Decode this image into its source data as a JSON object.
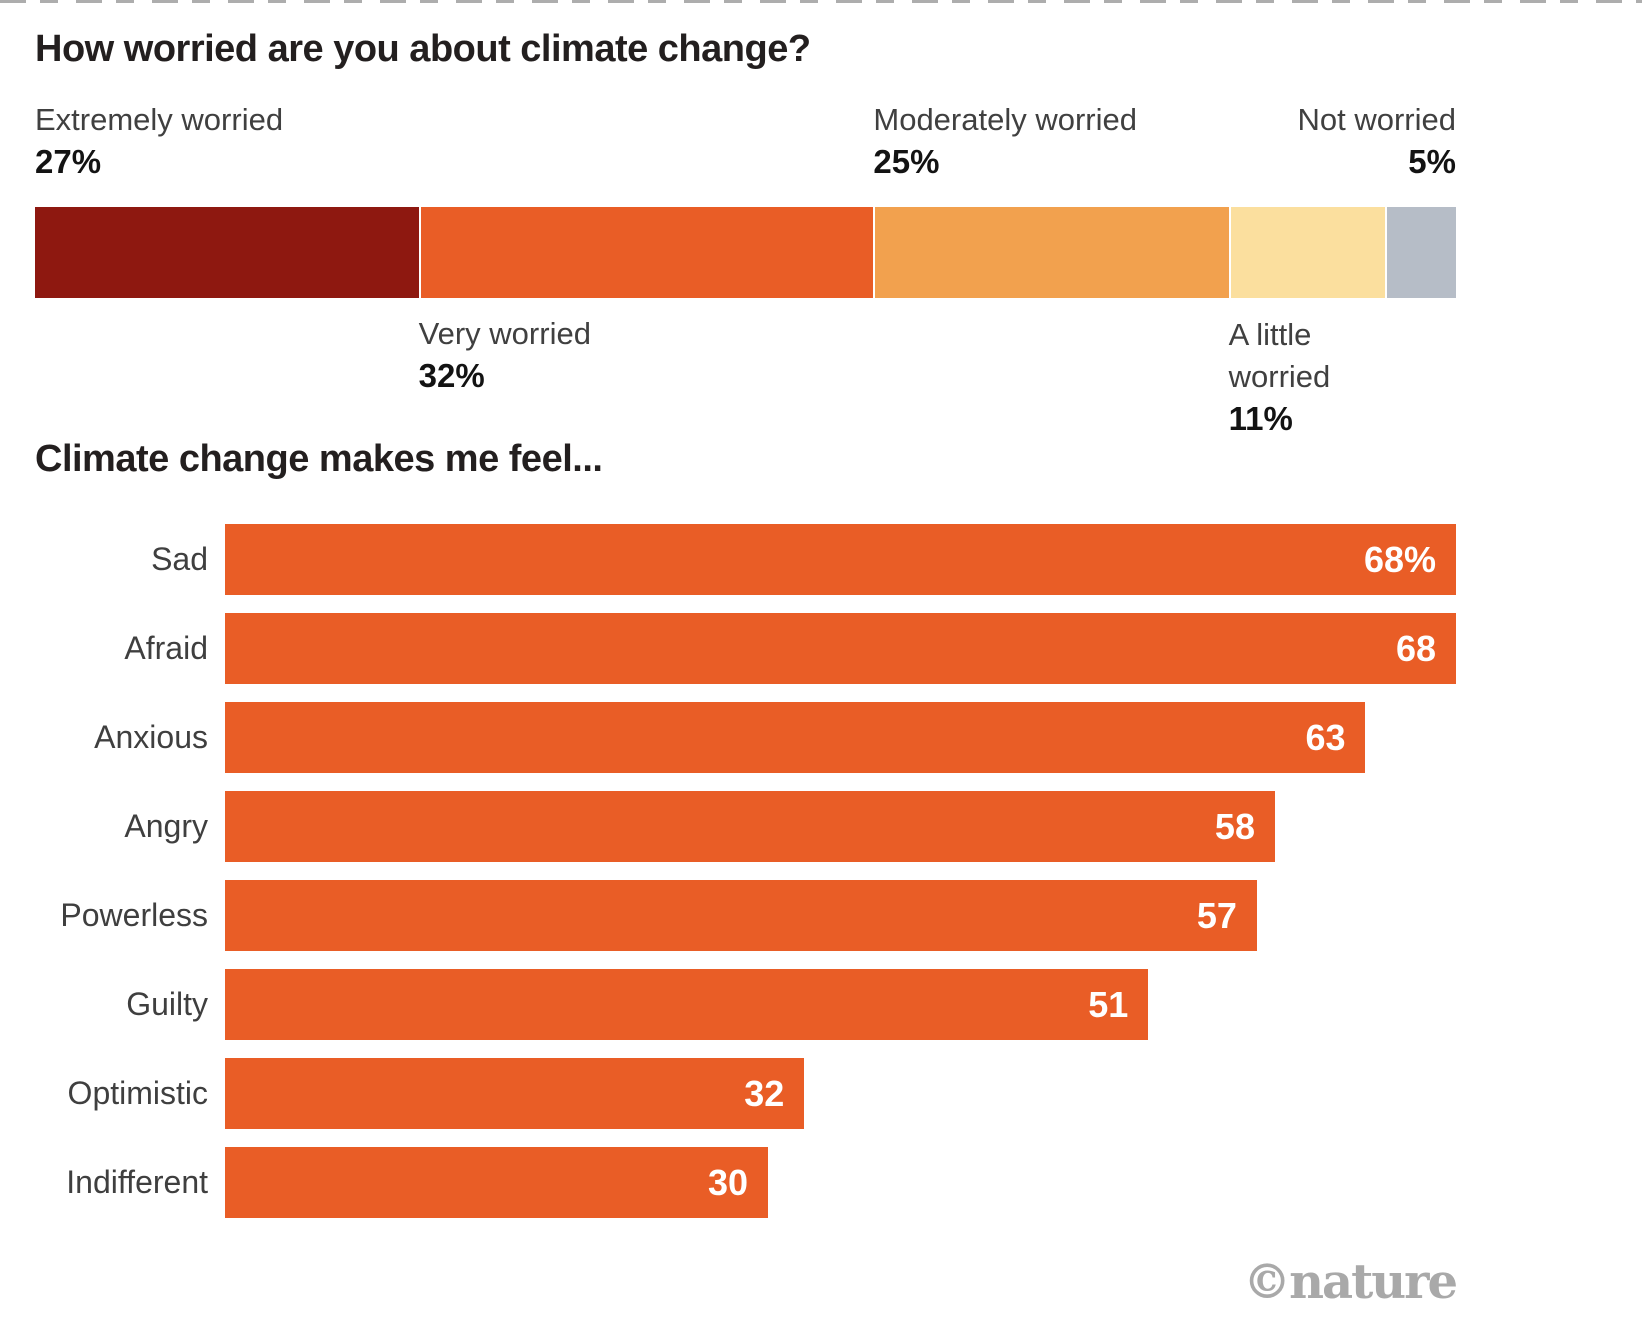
{
  "credit": {
    "text": "©nature",
    "color": "#A9A9A9"
  },
  "colors": {
    "title_text": "#231F1F",
    "label_gray": "#404040",
    "value_black": "#131313",
    "bar_value_white": "#FFFFFF"
  },
  "chart_data": [
    {
      "type": "stacked-bar",
      "orientation": "horizontal",
      "title": "How worried are you about climate change?",
      "categories": [
        "Extremely worried",
        "Very worried",
        "Moderately worried",
        "A little worried",
        "Not worried"
      ],
      "values": [
        27,
        32,
        25,
        11,
        5
      ],
      "value_labels": [
        "27%",
        "32%",
        "25%",
        "11%",
        "5%"
      ],
      "colors": [
        "#8E1810",
        "#E95D26",
        "#F2A14E",
        "#FBDF9E",
        "#B6BDC7"
      ],
      "label_placement": [
        "above-left",
        "below-left",
        "above-left",
        "below-left",
        "above-right"
      ],
      "unit": "percent",
      "xlim": [
        0,
        100
      ],
      "grid": false
    },
    {
      "type": "bar",
      "orientation": "horizontal",
      "title": "Climate change makes me feel...",
      "categories": [
        "Sad",
        "Afraid",
        "Anxious",
        "Angry",
        "Powerless",
        "Guilty",
        "Optimistic",
        "Indifferent"
      ],
      "values": [
        68,
        68,
        63,
        58,
        57,
        51,
        32,
        30
      ],
      "value_labels": [
        "68%",
        "68",
        "63",
        "58",
        "57",
        "51",
        "32",
        "30"
      ],
      "bar_color": "#E95D26",
      "value_label_color": "#FFFFFF",
      "value_label_position": "inside-right",
      "xlim": [
        0,
        68
      ],
      "grid": false,
      "legend_position": "none"
    }
  ]
}
